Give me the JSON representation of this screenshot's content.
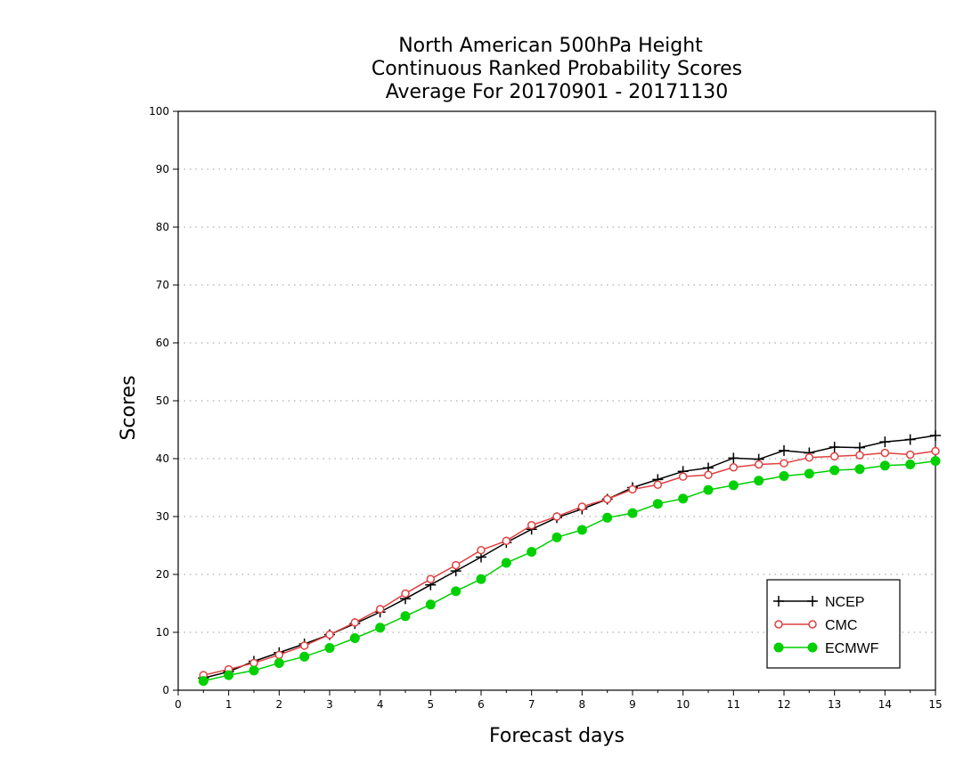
{
  "chart_data": {
    "type": "line",
    "title": [
      "North American 500hPa Height",
      "Continuous Ranked Probability Scores",
      "Average For 20170901 - 20171130"
    ],
    "xlabel": "Forecast days",
    "ylabel": "Scores",
    "xlim": [
      0,
      15
    ],
    "ylim": [
      0,
      100
    ],
    "xticks": [
      0,
      1,
      2,
      3,
      4,
      5,
      6,
      7,
      8,
      9,
      10,
      11,
      12,
      13,
      14,
      15
    ],
    "yticks": [
      0,
      10,
      20,
      30,
      40,
      50,
      60,
      70,
      80,
      90,
      100
    ],
    "grid": "horizontal-dotted",
    "legend_position": "bottom-right",
    "x": [
      0.5,
      1,
      1.5,
      2,
      2.5,
      3,
      3.5,
      4,
      4.5,
      5,
      5.5,
      6,
      6.5,
      7,
      7.5,
      8,
      8.5,
      9,
      9.5,
      10,
      10.5,
      11,
      11.5,
      12,
      12.5,
      13,
      13.5,
      14,
      14.5,
      15
    ],
    "series": [
      {
        "name": "NCEP",
        "color": "#000000",
        "marker": "plus",
        "values": [
          2.1,
          3.2,
          5.0,
          6.5,
          8.0,
          9.6,
          11.5,
          13.5,
          15.8,
          18.2,
          20.6,
          23.0,
          25.5,
          27.8,
          29.8,
          31.3,
          33.0,
          35.0,
          36.4,
          37.8,
          38.4,
          40.1,
          39.9,
          41.4,
          41.0,
          42.0,
          41.9,
          42.9,
          43.3,
          44.0
        ]
      },
      {
        "name": "CMC",
        "color": "#e04040",
        "marker": "open-circle",
        "values": [
          2.6,
          3.6,
          4.7,
          6.1,
          7.7,
          9.6,
          11.7,
          14.0,
          16.7,
          19.2,
          21.6,
          24.2,
          25.8,
          28.5,
          30.0,
          31.7,
          33.0,
          34.7,
          35.5,
          36.9,
          37.2,
          38.5,
          39.0,
          39.2,
          40.2,
          40.4,
          40.6,
          41.0,
          40.7,
          41.3
        ]
      },
      {
        "name": "ECMWF",
        "color": "#00d000",
        "marker": "filled-circle",
        "values": [
          1.6,
          2.6,
          3.4,
          4.7,
          5.8,
          7.3,
          9.0,
          10.8,
          12.8,
          14.8,
          17.1,
          19.2,
          22.0,
          23.9,
          26.4,
          27.7,
          29.8,
          30.6,
          32.2,
          33.1,
          34.6,
          35.4,
          36.2,
          37.0,
          37.4,
          38.0,
          38.2,
          38.8,
          39.0,
          39.6
        ]
      }
    ]
  }
}
